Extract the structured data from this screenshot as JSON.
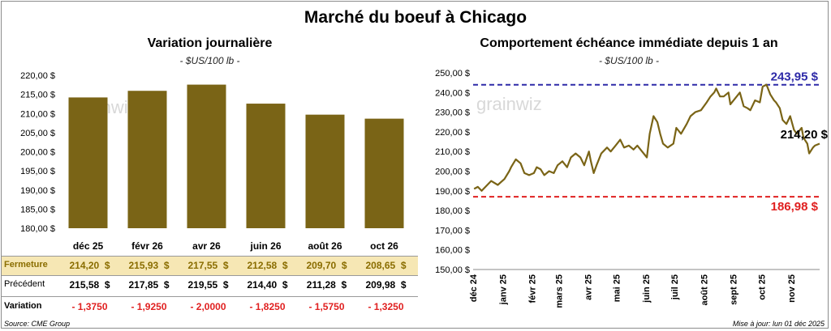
{
  "title": "Marché du boeuf à Chicago",
  "colors": {
    "bar": "#7a6416",
    "line": "#7a6416",
    "high": "#2e2aa8",
    "low": "#e02020",
    "fermeture_bg": "#f6e7b4",
    "negative": "#e02020"
  },
  "left": {
    "subtitle": "Variation journalière",
    "unit": "- $US/100 lb -",
    "watermark": "grainwiz",
    "chart_data": {
      "type": "bar",
      "categories": [
        "déc 25",
        "févr 26",
        "avr 26",
        "juin 26",
        "août 26",
        "oct 26"
      ],
      "values": [
        214.2,
        215.93,
        217.55,
        212.58,
        209.7,
        208.65
      ],
      "ylim": [
        180,
        220
      ],
      "yticks": [
        "180,00 $",
        "185,00 $",
        "190,00 $",
        "195,00 $",
        "200,00 $",
        "205,00 $",
        "210,00 $",
        "215,00 $",
        "220,00 $"
      ]
    },
    "table": {
      "rows": [
        {
          "label": "Fermeture",
          "values": [
            "214,20  $",
            "215,93  $",
            "217,55  $",
            "212,58  $",
            "209,70  $",
            "208,65  $"
          ]
        },
        {
          "label": "Précédent",
          "values": [
            "215,58  $",
            "217,85  $",
            "219,55  $",
            "214,40  $",
            "211,28  $",
            "209,98  $"
          ]
        },
        {
          "label": "Variation",
          "values": [
            "- 1,3750",
            "- 1,9250",
            "- 2,0000",
            "- 1,8250",
            "- 1,5750",
            "- 1,3250"
          ]
        }
      ]
    }
  },
  "right": {
    "subtitle": "Comportement  échéance immédiate depuis 1 an",
    "unit": "- $US/100 lb -",
    "watermark": "grainwiz",
    "chart_data": {
      "type": "line",
      "ylim": [
        150,
        250
      ],
      "yticks": [
        "150,00 $",
        "160,00 $",
        "170,00 $",
        "180,00 $",
        "190,00 $",
        "200,00 $",
        "210,00 $",
        "220,00 $",
        "230,00 $",
        "240,00 $",
        "250,00 $"
      ],
      "xticks": [
        "déc 24",
        "janv 25",
        "févr 25",
        "mars 25",
        "avr 25",
        "mai 25",
        "juin 25",
        "juil 25",
        "août 25",
        "sept 25",
        "oct 25",
        "nov 25"
      ],
      "x_start": "2024-12-01",
      "x_end": "2025-12-01",
      "dates": [
        "2024-12-02",
        "2024-12-06",
        "2024-12-10",
        "2024-12-16",
        "2024-12-20",
        "2024-12-27",
        "2025-01-03",
        "2025-01-08",
        "2025-01-10",
        "2025-01-15",
        "2025-01-20",
        "2025-01-24",
        "2025-01-29",
        "2025-02-03",
        "2025-02-06",
        "2025-02-10",
        "2025-02-14",
        "2025-02-19",
        "2025-02-24",
        "2025-02-28",
        "2025-03-05",
        "2025-03-10",
        "2025-03-14",
        "2025-03-19",
        "2025-03-24",
        "2025-03-28",
        "2025-04-02",
        "2025-04-04",
        "2025-04-07",
        "2025-04-10",
        "2025-04-15",
        "2025-04-21",
        "2025-04-25",
        "2025-04-30",
        "2025-05-05",
        "2025-05-09",
        "2025-05-14",
        "2025-05-19",
        "2025-05-23",
        "2025-05-28",
        "2025-06-02",
        "2025-06-05",
        "2025-06-09",
        "2025-06-13",
        "2025-06-16",
        "2025-06-19",
        "2025-06-24",
        "2025-06-30",
        "2025-07-03",
        "2025-07-08",
        "2025-07-14",
        "2025-07-18",
        "2025-07-23",
        "2025-07-29",
        "2025-08-04",
        "2025-08-08",
        "2025-08-12",
        "2025-08-14",
        "2025-08-18",
        "2025-08-22",
        "2025-08-27",
        "2025-08-29",
        "2025-09-03",
        "2025-09-08",
        "2025-09-12",
        "2025-09-16",
        "2025-09-19",
        "2025-09-24",
        "2025-09-29",
        "2025-10-02",
        "2025-10-06",
        "2025-10-10",
        "2025-10-14",
        "2025-10-16",
        "2025-10-20",
        "2025-10-23",
        "2025-10-27",
        "2025-10-31",
        "2025-11-04",
        "2025-11-07",
        "2025-11-12",
        "2025-11-14",
        "2025-11-18",
        "2025-11-20",
        "2025-11-24",
        "2025-11-26",
        "2025-12-01"
      ],
      "values": [
        191,
        192,
        190,
        193,
        195,
        193,
        196,
        200,
        202,
        206,
        204,
        199,
        198,
        199,
        202,
        201,
        198,
        200,
        199,
        203,
        205,
        202,
        207,
        209,
        207,
        203,
        210,
        205,
        199,
        203,
        209,
        212,
        210,
        213,
        216,
        212,
        213,
        211,
        213,
        210,
        207,
        219,
        228,
        225,
        219,
        214,
        212,
        214,
        222,
        219,
        224,
        228,
        230,
        231,
        235,
        238,
        240,
        242,
        238,
        238,
        240,
        234,
        237,
        240,
        233,
        232,
        231,
        236,
        235,
        243,
        244,
        239,
        236,
        235,
        232,
        226,
        224,
        228,
        221,
        219,
        222,
        217,
        214,
        209,
        212,
        213,
        214
      ],
      "hline_high": {
        "value": 243.95,
        "label": "243,95 $"
      },
      "hline_low": {
        "value": 186.98,
        "label": "186,98 $"
      },
      "last_label": "214,20 $"
    }
  },
  "footer": {
    "source": "Source: CME Group",
    "updated": "Mise à jour: lun 01 déc 2025"
  }
}
